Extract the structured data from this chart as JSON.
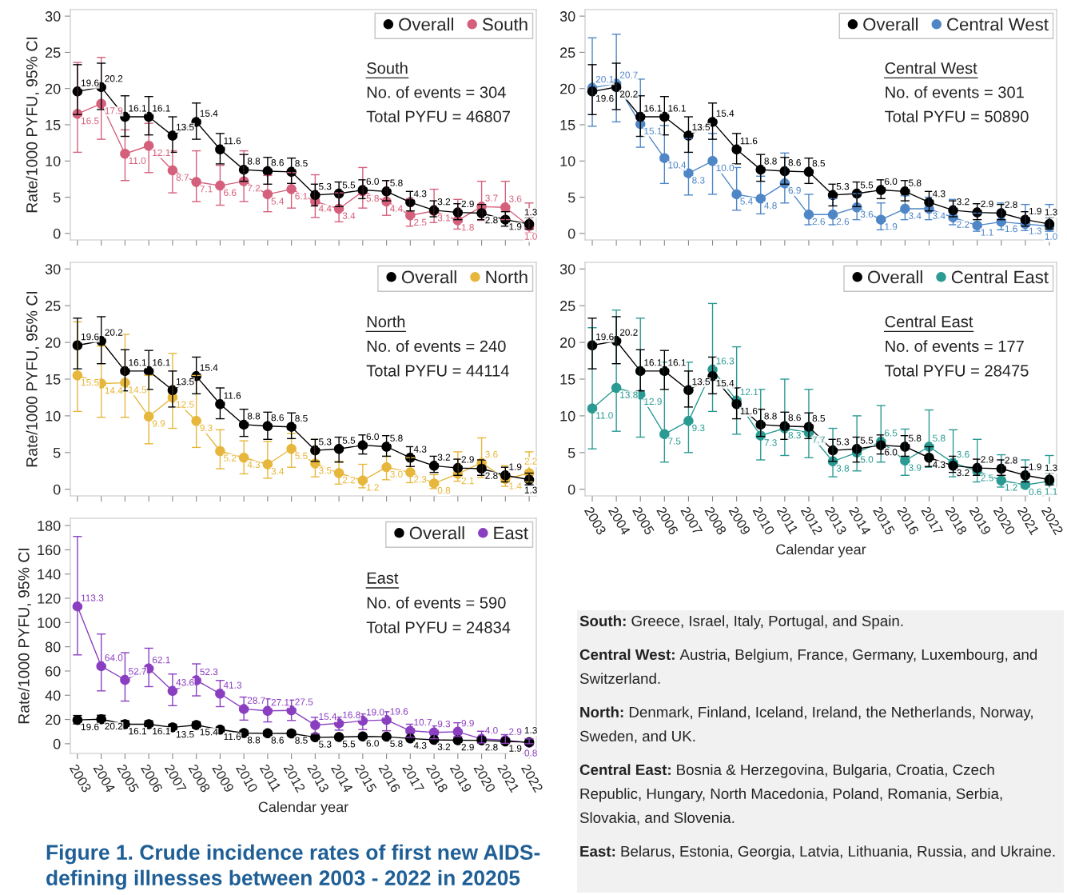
{
  "chart_data": [
    {
      "type": "line",
      "categories": [
        "2003",
        "2004",
        "2005",
        "2006",
        "2007",
        "2008",
        "2009",
        "2010",
        "2011",
        "2012",
        "2013",
        "2014",
        "2015",
        "2016",
        "2017",
        "2018",
        "2019",
        "2020",
        "2021",
        "2022"
      ],
      "ylabel": "Rate/1000 PYFU, 95% CI",
      "ylim": [
        -0.9,
        30.9
      ],
      "yticks": [
        0,
        5,
        10,
        15,
        20,
        25,
        30
      ],
      "tick_labels": "y",
      "legend": "top right",
      "marker": "circle",
      "annotations": [
        "South",
        "No. of events = 304",
        "Total PYFU = 46807"
      ],
      "series": [
        {
          "name": "Overall",
          "color": "#000000",
          "values": [
            19.6,
            20.2,
            16.1,
            16.1,
            13.5,
            15.4,
            11.6,
            8.8,
            8.6,
            8.5,
            5.3,
            5.5,
            6.0,
            5.8,
            4.3,
            3.2,
            2.9,
            2.8,
            1.9,
            1.3
          ],
          "value_labels": [
            "19.6",
            "20.2",
            "16.1",
            "16.1",
            "13.5",
            "15.4",
            "11.6",
            "8.8",
            "8.6",
            "8.5",
            "5.3",
            "5.5",
            "6.0",
            "5.8",
            "4.3",
            "3.2",
            "2.9",
            "2.8",
            "1.9",
            "1.3"
          ],
          "errors": [
            [
              16.4,
              23.3
            ],
            [
              17.1,
              23.5
            ],
            [
              13.4,
              19.0
            ],
            [
              13.6,
              18.9
            ],
            [
              11.2,
              16.1
            ],
            [
              13.0,
              18.0
            ],
            [
              9.6,
              13.8
            ],
            [
              7.2,
              10.9
            ],
            [
              6.8,
              10.5
            ],
            [
              6.9,
              10.4
            ],
            [
              3.8,
              6.8
            ],
            [
              3.7,
              7.1
            ],
            [
              4.8,
              7.4
            ],
            [
              4.5,
              7.3
            ],
            [
              3.1,
              5.8
            ],
            [
              2.3,
              4.5
            ],
            [
              1.9,
              4.1
            ],
            [
              1.9,
              4.0
            ],
            [
              1.0,
              3.0
            ],
            [
              0.6,
              2.2
            ]
          ]
        },
        {
          "name": "South",
          "color": "#d4607c",
          "values": [
            16.5,
            17.9,
            11.0,
            12.1,
            8.7,
            7.1,
            6.6,
            7.2,
            5.4,
            6.1,
            4.4,
            3.4,
            5.8,
            4.4,
            2.5,
            3.1,
            1.8,
            3.7,
            3.6,
            1.0
          ],
          "value_labels": [
            "16.5",
            "17.9",
            "11.0",
            "12.1",
            "8.7",
            "7.1",
            "6.6",
            "7.2",
            "5.4",
            "6.1",
            "4.4",
            "3.4",
            "5.8",
            "4.4",
            "2.5",
            "3.1",
            "1.8",
            "3.7",
            "3.6",
            "1.0"
          ],
          "errors": [
            [
              11.2,
              23.6
            ],
            [
              13.0,
              24.3
            ],
            [
              7.3,
              14.3
            ],
            [
              8.4,
              15.2
            ],
            [
              5.6,
              11.4
            ],
            [
              4.4,
              11.4
            ],
            [
              3.9,
              9.4
            ],
            [
              4.4,
              11.4
            ],
            [
              3.0,
              8.0
            ],
            [
              3.5,
              8.4
            ],
            [
              2.2,
              8.1
            ],
            [
              1.6,
              5.6
            ],
            [
              3.5,
              9.1
            ],
            [
              2.5,
              7.3
            ],
            [
              1.0,
              4.8
            ],
            [
              1.5,
              6.1
            ],
            [
              0.6,
              4.7
            ],
            [
              1.8,
              7.2
            ],
            [
              1.9,
              7.2
            ],
            [
              0.1,
              4.2
            ]
          ]
        }
      ]
    },
    {
      "type": "line",
      "categories": [
        "2003",
        "2004",
        "2005",
        "2006",
        "2007",
        "2008",
        "2009",
        "2010",
        "2011",
        "2012",
        "2013",
        "2014",
        "2015",
        "2016",
        "2017",
        "2018",
        "2019",
        "2020",
        "2021",
        "2022"
      ],
      "ylabel": "Rate/1000 PYFU, 95% CI",
      "ylim": [
        -0.9,
        30.9
      ],
      "yticks": [
        0,
        5,
        10,
        15,
        20,
        25,
        30
      ],
      "tick_labels": "y",
      "legend": "top right",
      "marker": "circle",
      "annotations": [
        "North",
        "No. of events = 240",
        "Total PYFU = 44114"
      ],
      "series": [
        {
          "name": "Overall",
          "color": "#000000",
          "values": [
            19.6,
            20.2,
            16.1,
            16.1,
            13.5,
            15.4,
            11.6,
            8.8,
            8.6,
            8.5,
            5.3,
            5.5,
            6.0,
            5.8,
            4.3,
            3.2,
            2.9,
            2.8,
            1.9,
            1.3
          ],
          "value_labels": [
            "19.6",
            "20.2",
            "16.1",
            "16.1",
            "13.5",
            "15.4",
            "11.6",
            "8.8",
            "8.6",
            "8.5",
            "5.3",
            "5.5",
            "6.0",
            "5.8",
            "4.3",
            "3.2",
            "2.9",
            "2.8",
            "1.9",
            "1.3"
          ],
          "errors": [
            [
              16.4,
              23.3
            ],
            [
              17.1,
              23.5
            ],
            [
              13.4,
              19.0
            ],
            [
              13.6,
              18.9
            ],
            [
              11.2,
              16.1
            ],
            [
              13.0,
              18.0
            ],
            [
              9.6,
              13.8
            ],
            [
              7.2,
              10.9
            ],
            [
              6.8,
              10.5
            ],
            [
              6.9,
              10.4
            ],
            [
              3.8,
              6.8
            ],
            [
              3.7,
              7.1
            ],
            [
              4.8,
              7.4
            ],
            [
              4.5,
              7.3
            ],
            [
              3.1,
              5.8
            ],
            [
              2.3,
              4.5
            ],
            [
              1.9,
              4.1
            ],
            [
              1.9,
              4.0
            ],
            [
              1.0,
              3.0
            ],
            [
              0.6,
              2.2
            ]
          ]
        },
        {
          "name": "North",
          "color": "#e6b73c",
          "values": [
            15.5,
            14.4,
            14.5,
            9.9,
            12.5,
            9.3,
            5.2,
            4.3,
            3.4,
            5.5,
            3.5,
            2.2,
            1.2,
            3.0,
            2.3,
            0.8,
            2.1,
            3.6,
            1.4,
            2.2
          ],
          "value_labels": [
            "15.5",
            "14.4",
            "14.5",
            "9.9",
            "12.5",
            "9.3",
            "5.2",
            "4.3",
            "3.4",
            "5.5",
            "3.5",
            "2.2",
            "1.2",
            "3.0",
            "2.3",
            "0.8",
            "2.1",
            "3.6",
            "1.4",
            "2.2"
          ],
          "errors": [
            [
              10.6,
              22.8
            ],
            [
              9.8,
              19.5
            ],
            [
              9.8,
              21.1
            ],
            [
              6.2,
              15.5
            ],
            [
              8.3,
              18.5
            ],
            [
              5.7,
              15.5
            ],
            [
              2.8,
              8.1
            ],
            [
              2.1,
              6.6
            ],
            [
              1.5,
              6.5
            ],
            [
              3.0,
              7.6
            ],
            [
              1.7,
              6.8
            ],
            [
              0.7,
              3.8
            ],
            [
              0.2,
              3.4
            ],
            [
              1.3,
              4.5
            ],
            [
              0.9,
              4.3
            ],
            [
              0.1,
              2.0
            ],
            [
              1.1,
              5.1
            ],
            [
              1.6,
              7.0
            ],
            [
              0.4,
              3.2
            ],
            [
              1.0,
              5.1
            ]
          ]
        }
      ]
    },
    {
      "type": "line",
      "categories": [
        "2003",
        "2004",
        "2005",
        "2006",
        "2007",
        "2008",
        "2009",
        "2010",
        "2011",
        "2012",
        "2013",
        "2014",
        "2015",
        "2016",
        "2017",
        "2018",
        "2019",
        "2020",
        "2021",
        "2022"
      ],
      "xlabel": "Calendar year",
      "ylabel": "Rate/1000 PYFU, 95% CI",
      "ylim": [
        -8,
        186
      ],
      "yticks": [
        0,
        20,
        40,
        60,
        80,
        100,
        120,
        140,
        160,
        180
      ],
      "legend": "top right",
      "marker": "circle",
      "annotations": [
        "East",
        "No. of events = 590",
        "Total PYFU = 24834"
      ],
      "series": [
        {
          "name": "Overall",
          "color": "#000000",
          "values": [
            19.6,
            20.2,
            16.1,
            16.1,
            13.5,
            15.4,
            11.6,
            8.8,
            8.6,
            8.5,
            5.3,
            5.5,
            6.0,
            5.8,
            4.3,
            3.2,
            2.9,
            2.8,
            1.9,
            1.3
          ],
          "value_labels": [
            "19.6",
            "20.2",
            "16.1",
            "16.1",
            "13.5",
            "15.4",
            "11.6",
            "8.8",
            "8.6",
            "8.5",
            "5.3",
            "5.5",
            "6.0",
            "5.8",
            "4.3",
            "3.2",
            "2.9",
            "2.8",
            "1.9",
            "1.3"
          ],
          "errors": [
            [
              16.4,
              23.3
            ],
            [
              17.1,
              23.5
            ],
            [
              13.4,
              19.0
            ],
            [
              13.6,
              18.9
            ],
            [
              11.2,
              16.1
            ],
            [
              13.0,
              18.0
            ],
            [
              9.6,
              13.8
            ],
            [
              7.2,
              10.9
            ],
            [
              6.8,
              10.5
            ],
            [
              6.9,
              10.4
            ],
            null,
            null,
            null,
            null,
            null,
            null,
            null,
            null,
            null,
            null
          ]
        },
        {
          "name": "East",
          "color": "#8a3fc0",
          "values": [
            113.3,
            64.0,
            52.7,
            62.1,
            43.6,
            52.3,
            41.3,
            28.7,
            27.1,
            27.5,
            15.4,
            16.8,
            19.0,
            19.6,
            10.7,
            9.3,
            9.9,
            4.0,
            2.9,
            0.8
          ],
          "value_labels": [
            "113.3",
            "64.0",
            "52.7",
            "62.1",
            "43.6",
            "52.3",
            "41.3",
            "28.7",
            "27.1",
            "27.5",
            "15.4",
            "16.8",
            "19.0",
            "19.6",
            "10.7",
            "9.3",
            "9.9",
            "4.0",
            "2.9",
            "0.8"
          ],
          "errors": [
            [
              73.3,
              171.0
            ],
            [
              43.6,
              90.5
            ],
            [
              35.2,
              75.1
            ],
            [
              47.1,
              78.8
            ],
            [
              31.4,
              57.5
            ],
            [
              39.5,
              65.9
            ],
            [
              30.6,
              52.2
            ],
            [
              19.5,
              38.5
            ],
            [
              18.0,
              37.0
            ],
            [
              19.2,
              36.0
            ],
            [
              8.2,
              21.8
            ],
            [
              11.2,
              22.0
            ],
            [
              11.7,
              24.6
            ],
            [
              10.7,
              26.4
            ],
            [
              5.3,
              16.1
            ],
            [
              4.1,
              14.7
            ],
            [
              5.9,
              17.3
            ],
            [
              0.6,
              10.3
            ],
            [
              0.3,
              7.5
            ],
            [
              0.0,
              4.0
            ]
          ]
        }
      ]
    },
    {
      "type": "line",
      "categories": [
        "2003",
        "2004",
        "2005",
        "2006",
        "2007",
        "2008",
        "2009",
        "2010",
        "2011",
        "2012",
        "2013",
        "2014",
        "2015",
        "2016",
        "2017",
        "2018",
        "2019",
        "2020",
        "2021",
        "2022"
      ],
      "ylim": [
        -0.9,
        30.9
      ],
      "yticks": [
        0,
        5,
        10,
        15,
        20,
        25,
        30
      ],
      "tick_labels": "y",
      "legend": "top right",
      "marker": "circle",
      "annotations": [
        "Central West",
        "No. of events = 301",
        "Total PYFU = 50890"
      ],
      "series": [
        {
          "name": "Overall",
          "color": "#000000",
          "values": [
            19.6,
            20.2,
            16.1,
            16.1,
            13.5,
            15.4,
            11.6,
            8.8,
            8.6,
            8.5,
            5.3,
            5.5,
            6.0,
            5.8,
            4.3,
            3.2,
            2.9,
            2.8,
            1.9,
            1.3
          ],
          "value_labels": [
            "19.6",
            "20.2",
            "16.1",
            "16.1",
            "13.5",
            "15.4",
            "11.6",
            "8.8",
            "8.6",
            "8.5",
            "5.3",
            "5.5",
            "6.0",
            "5.8",
            "4.3",
            "3.2",
            "2.9",
            "2.8",
            "1.9",
            "1.3"
          ],
          "errors": [
            [
              16.4,
              23.3
            ],
            [
              17.1,
              23.5
            ],
            [
              13.4,
              19.0
            ],
            [
              13.6,
              18.9
            ],
            [
              11.2,
              16.1
            ],
            [
              13.0,
              18.0
            ],
            [
              9.6,
              13.8
            ],
            [
              7.2,
              10.9
            ],
            [
              6.8,
              10.5
            ],
            [
              6.9,
              10.4
            ],
            [
              3.8,
              6.8
            ],
            [
              3.7,
              7.1
            ],
            [
              4.8,
              7.4
            ],
            [
              4.5,
              7.3
            ],
            [
              3.1,
              5.8
            ],
            [
              2.3,
              4.5
            ],
            [
              1.9,
              4.1
            ],
            [
              1.9,
              4.0
            ],
            [
              1.0,
              3.0
            ],
            [
              0.6,
              2.2
            ]
          ]
        },
        {
          "name": "Central West",
          "color": "#4f86c6",
          "values": [
            20.1,
            20.7,
            15.1,
            10.4,
            8.3,
            10.0,
            5.4,
            4.8,
            6.9,
            2.6,
            2.6,
            3.6,
            1.9,
            3.4,
            3.4,
            2.2,
            1.1,
            1.6,
            1.3,
            1.0
          ],
          "value_labels": [
            "20.1",
            "20.7",
            "15.1",
            "10.4",
            "8.3",
            "10.0",
            "5.4",
            "4.8",
            "6.9",
            "2.6",
            "2.6",
            "3.6",
            "1.9",
            "3.4",
            "3.4",
            "2.2",
            "1.1",
            "1.6",
            "1.3",
            "1.0"
          ],
          "errors": [
            [
              14.8,
              27.0
            ],
            [
              15.4,
              27.5
            ],
            [
              11.9,
              21.3
            ],
            [
              6.9,
              14.9
            ],
            [
              5.3,
              13.1
            ],
            [
              5.4,
              13.8
            ],
            [
              3.2,
              9.1
            ],
            [
              2.7,
              7.9
            ],
            [
              4.2,
              11.1
            ],
            [
              1.2,
              5.4
            ],
            [
              1.2,
              4.8
            ],
            [
              1.9,
              5.5
            ],
            [
              0.5,
              4.2
            ],
            [
              1.9,
              5.2
            ],
            [
              1.9,
              5.0
            ],
            [
              1.2,
              4.7
            ],
            [
              0.3,
              2.8
            ],
            [
              0.5,
              4.2
            ],
            [
              0.4,
              4.0
            ],
            [
              0.3,
              4.0
            ]
          ]
        }
      ]
    },
    {
      "type": "line",
      "categories": [
        "2003",
        "2004",
        "2005",
        "2006",
        "2007",
        "2008",
        "2009",
        "2010",
        "2011",
        "2012",
        "2013",
        "2014",
        "2015",
        "2016",
        "2017",
        "2018",
        "2019",
        "2020",
        "2021",
        "2022"
      ],
      "xlabel": "Calendar year",
      "ylim": [
        -0.9,
        30.9
      ],
      "yticks": [
        0,
        5,
        10,
        15,
        20,
        25,
        30
      ],
      "legend": "top right",
      "marker": "circle",
      "annotations": [
        "Central East",
        "No. of events = 177",
        "Total PYFU = 28475"
      ],
      "series": [
        {
          "name": "Overall",
          "color": "#000000",
          "values": [
            19.6,
            20.2,
            16.1,
            16.1,
            13.5,
            15.4,
            11.6,
            8.8,
            8.6,
            8.5,
            5.3,
            5.5,
            6.0,
            5.8,
            4.3,
            3.2,
            2.9,
            2.8,
            1.9,
            1.3
          ],
          "value_labels": [
            "19.6",
            "20.2",
            "16.1",
            "16.1",
            "13.5",
            "15.4",
            "11.6",
            "8.8",
            "8.6",
            "8.5",
            "5.3",
            "5.5",
            "6.0",
            "5.8",
            "4.3",
            "3.2",
            "2.9",
            "2.8",
            "1.9",
            "1.3"
          ],
          "errors": [
            [
              16.4,
              23.3
            ],
            [
              17.1,
              23.5
            ],
            [
              13.4,
              19.0
            ],
            [
              13.6,
              18.9
            ],
            [
              11.2,
              16.1
            ],
            [
              13.0,
              18.0
            ],
            [
              9.6,
              13.8
            ],
            [
              7.2,
              10.9
            ],
            [
              6.8,
              10.5
            ],
            [
              6.9,
              10.4
            ],
            [
              3.8,
              6.8
            ],
            [
              3.7,
              7.1
            ],
            [
              4.8,
              7.4
            ],
            [
              4.5,
              7.3
            ],
            [
              3.1,
              5.8
            ],
            [
              2.3,
              4.5
            ],
            [
              1.9,
              4.1
            ],
            [
              1.9,
              4.0
            ],
            [
              1.0,
              3.0
            ],
            [
              0.6,
              2.2
            ]
          ]
        },
        {
          "name": "Central East",
          "color": "#2a9a93",
          "values": [
            11.0,
            13.8,
            12.9,
            7.5,
            9.3,
            16.3,
            12.1,
            7.3,
            8.3,
            7.7,
            3.8,
            5.0,
            6.5,
            3.9,
            5.8,
            3.6,
            2.5,
            1.2,
            0.6,
            1.1
          ],
          "value_labels": [
            "11.0",
            "13.8",
            "12.9",
            "7.5",
            "9.3",
            "16.3",
            "12.1",
            "7.3",
            "8.3",
            "7.7",
            "3.8",
            "5.0",
            "6.5",
            "3.9",
            "5.8",
            "3.6",
            "2.5",
            "1.2",
            "0.6",
            "1.1"
          ],
          "errors": [
            [
              5.5,
              22.0
            ],
            [
              7.9,
              24.4
            ],
            [
              7.1,
              23.3
            ],
            [
              3.7,
              17.3
            ],
            [
              5.0,
              17.3
            ],
            [
              10.6,
              25.3
            ],
            [
              7.5,
              19.4
            ],
            [
              4.0,
              13.6
            ],
            [
              4.6,
              15.0
            ],
            [
              4.3,
              13.6
            ],
            [
              1.7,
              8.3
            ],
            [
              2.5,
              10.0
            ],
            [
              3.7,
              11.4
            ],
            [
              1.9,
              8.2
            ],
            [
              3.0,
              10.8
            ],
            [
              1.7,
              8.1
            ],
            [
              1.0,
              6.8
            ],
            [
              0.3,
              4.7
            ],
            [
              0.2,
              4.0
            ],
            [
              0.1,
              4.6
            ]
          ]
        }
      ]
    },
    {
      "type": "other",
      "title": "Figure 1. Crude incidence rates of first new AIDS-defining illnesses between 2003 - 2022 in 20205",
      "annotations": [
        "South: Greece, Israel, Italy, Portugal, and Spain.",
        "Central West: Austria, Belgium, France, Germany, Luxembourg, and Switzerland.",
        "North: Denmark, Finland, Iceland, Ireland, the Netherlands, Norway, Sweden, and UK.",
        "Central East: Bosnia & Herzegovina, Bulgaria, Croatia, Czech Republic, Hungary, North Macedonia, Poland, Romania, Serbia, Slovakia, and Slovenia.",
        "East: Belarus, Estonia, Georgia, Latvia, Lithuania, Russia, and Ukraine."
      ]
    }
  ]
}
